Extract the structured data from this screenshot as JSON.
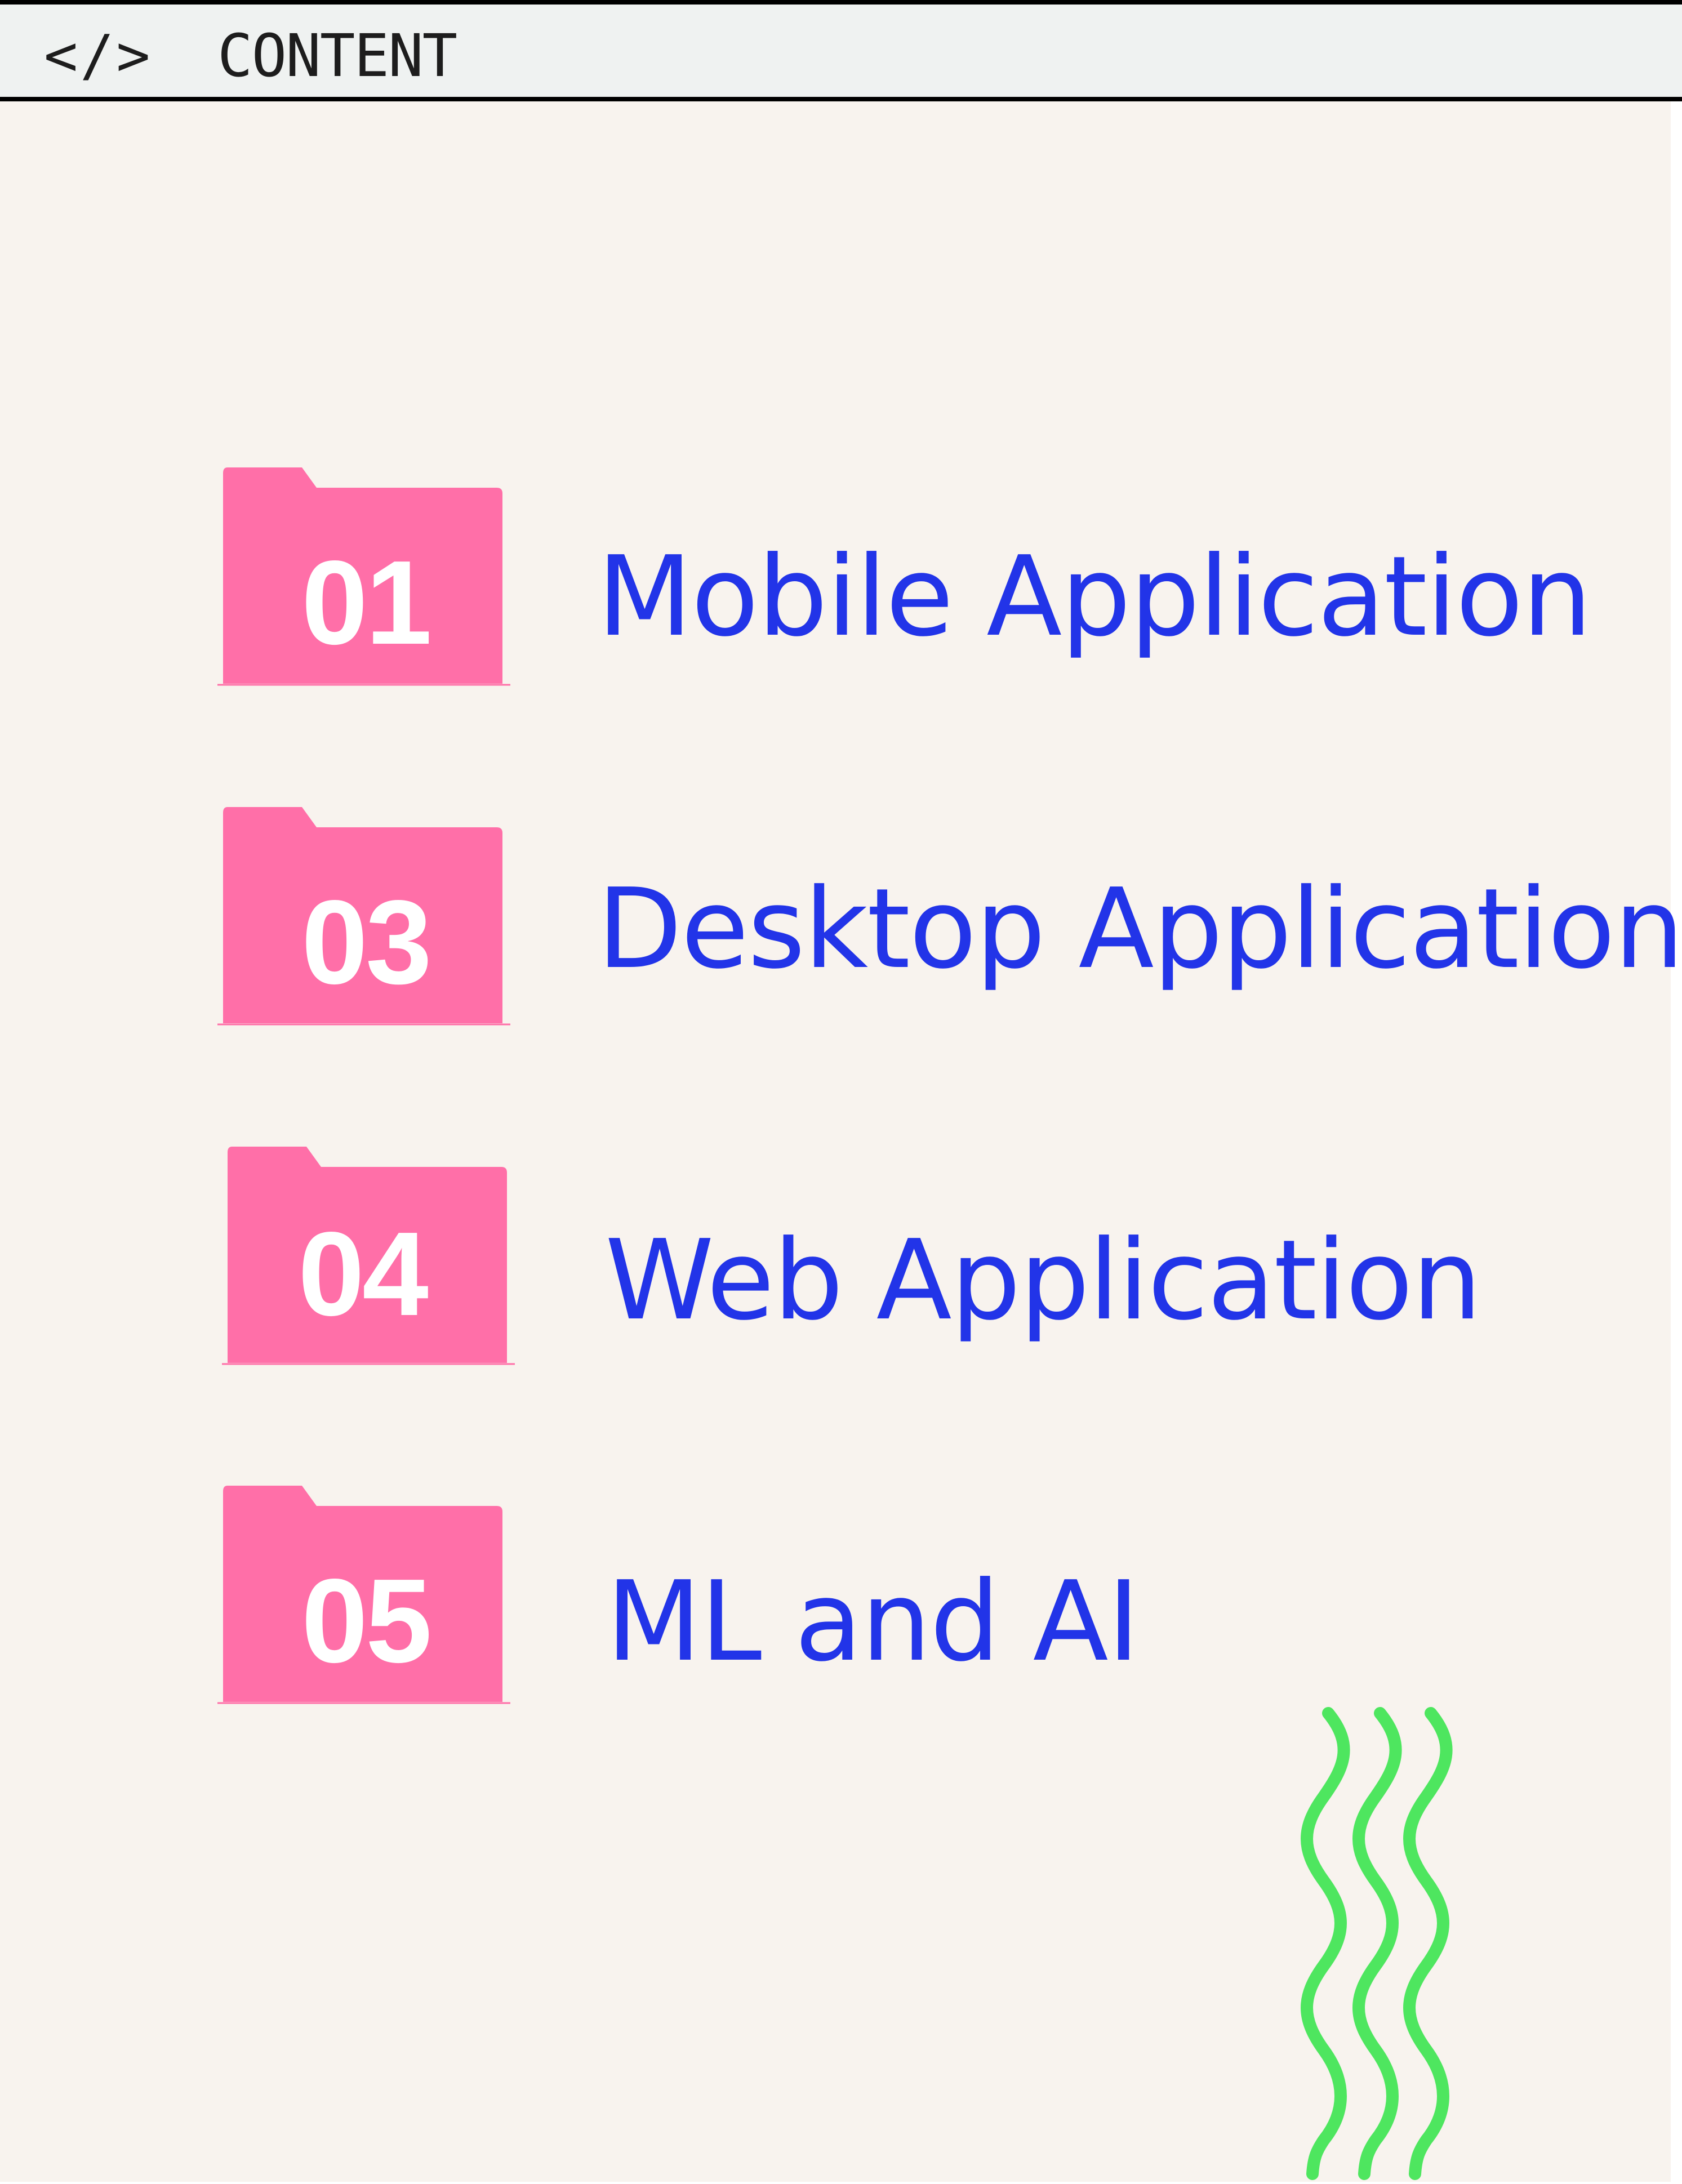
{
  "header": {
    "icon_name": "code-icon",
    "icon_glyph": "</>",
    "title": "CONTENT"
  },
  "items": [
    {
      "number": "01",
      "label": "Mobile Application"
    },
    {
      "number": "03",
      "label": "Desktop Application"
    },
    {
      "number": "04",
      "label": "Web Application"
    },
    {
      "number": "05",
      "label": "ML and AI"
    }
  ],
  "colors": {
    "folder": "#ff6fa8",
    "label": "#2234e8",
    "squiggle": "#4ee65f",
    "background": "#f8f3ee"
  }
}
